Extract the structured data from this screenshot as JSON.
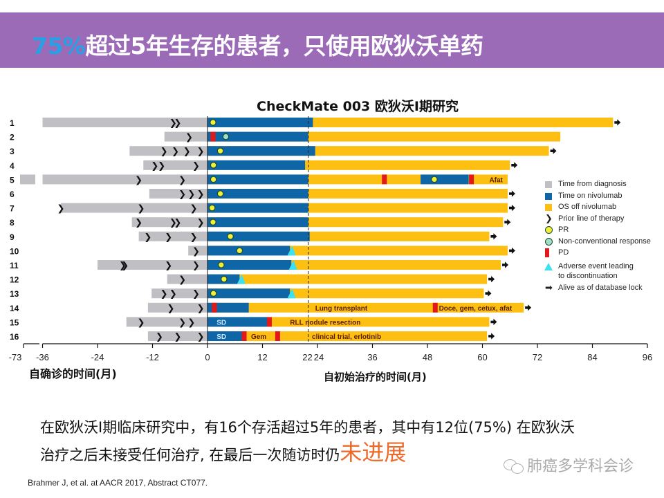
{
  "header": {
    "title_highlight": "75%",
    "title_rest": "超过5年生存的患者，只使用欧狄沃单药"
  },
  "colors": {
    "banner": "#9b6bb7",
    "highlight": "#2a9fe3",
    "time_from_diagnosis": "#c0bfc3",
    "time_on_nivolumab": "#0e66a6",
    "os_off_nivolumab": "#fcbf12",
    "pr": "#f2ef3c",
    "non_conventional": "#9fe0c8",
    "pd": "#e3181a",
    "adverse_event": "#3ee0f0",
    "emphasis": "#ec6a2a"
  },
  "chart_data": {
    "type": "swimmer",
    "title": "CheckMate 003 欧狄沃I期研究",
    "xlabel_left": "自确诊的时间(月)",
    "xlabel_right": "自初始治疗的时间(月)",
    "x_ticks": [
      "-73",
      "-36",
      "-24",
      "-12",
      "0",
      "12",
      "22",
      "24",
      "36",
      "48",
      "60",
      "72",
      "84",
      "96"
    ],
    "xlim": [
      -36,
      96
    ],
    "axis_break": {
      "label": "-73",
      "value": -73
    },
    "reference_line": 22,
    "legend": [
      {
        "key": "time_from_diagnosis",
        "label": "Time from diagnosis",
        "icon": "square"
      },
      {
        "key": "time_on_nivolumab",
        "label": "Time on nivolumab",
        "icon": "square"
      },
      {
        "key": "os_off_nivolumab",
        "label": "OS off nivolumab",
        "icon": "square"
      },
      {
        "key": "prior_line",
        "label": "Prior line of therapy",
        "icon": "chevron"
      },
      {
        "key": "pr",
        "label": "PR",
        "icon": "circle"
      },
      {
        "key": "non_conventional",
        "label": "Non-conventional response",
        "icon": "circle"
      },
      {
        "key": "pd",
        "label": "PD",
        "icon": "bar"
      },
      {
        "key": "adverse_event",
        "label": "Adverse event leading to discontinuation",
        "icon": "triangle"
      },
      {
        "key": "alive",
        "label": "Alive as of database lock",
        "icon": "arrow"
      }
    ],
    "patients": [
      {
        "id": "1",
        "diag_start": -36,
        "diag_break": false,
        "prior_lines": [
          -7.5,
          -6.5
        ],
        "nivo": [
          [
            0,
            23
          ]
        ],
        "os_end": 88.5,
        "alive": true,
        "pr": [
          1.2
        ],
        "ncr": [],
        "pd": [],
        "ae": [],
        "labels": []
      },
      {
        "id": "2",
        "diag_start": -9.4,
        "prior_lines": [
          -4
        ],
        "nivo": [
          [
            0,
            22
          ]
        ],
        "os_end": 77,
        "alive": false,
        "pr": [],
        "ncr": [
          4
        ],
        "pd": [
          1.2
        ],
        "ae": [],
        "labels": []
      },
      {
        "id": "3",
        "diag_start": -17,
        "prior_lines": [
          -9.5,
          -7,
          -4.5,
          -1.5
        ],
        "nivo": [
          [
            0,
            23.5
          ]
        ],
        "os_end": 74.5,
        "alive": true,
        "pr": [
          2.8
        ],
        "ncr": [],
        "pd": [],
        "ae": [],
        "labels": []
      },
      {
        "id": "4",
        "diag_start": -14,
        "prior_lines": [
          -11.5,
          -10,
          -2.5
        ],
        "nivo": [
          [
            0,
            21.3
          ]
        ],
        "os_end": 66,
        "alive": true,
        "pr": [
          1.3
        ],
        "ncr": [],
        "pd": [],
        "ae": [],
        "labels": []
      },
      {
        "id": "5",
        "diag_start": -36,
        "diag_break": true,
        "prior_lines": [
          -15,
          -5.5
        ],
        "nivo": [
          [
            0,
            22
          ],
          [
            46.5,
            57
          ]
        ],
        "os_end": 65.5,
        "alive": false,
        "pr": [
          1.3,
          49.5
        ],
        "ncr": [],
        "pd": [
          38.6,
          57.6
        ],
        "ae": [],
        "labels": [
          {
            "text": "Afat",
            "at": 61.5
          }
        ]
      },
      {
        "id": "6",
        "diag_start": -12.7,
        "prior_lines": [
          -5.5,
          -3.5,
          -1.5
        ],
        "nivo": [
          [
            0,
            22
          ]
        ],
        "os_end": 65.5,
        "alive": true,
        "pr": [
          2.8
        ],
        "ncr": [],
        "pd": [],
        "ae": [],
        "labels": []
      },
      {
        "id": "7",
        "diag_start": -32,
        "prior_lines": [
          -32,
          -14.5,
          -3
        ],
        "nivo": [
          [
            0,
            22
          ]
        ],
        "os_end": 65.5,
        "alive": true,
        "pr": [
          1
        ],
        "ncr": [],
        "pd": [],
        "ae": [],
        "labels": []
      },
      {
        "id": "8",
        "diag_start": -16.5,
        "prior_lines": [
          -15,
          -7.5,
          -6.5,
          -1.5
        ],
        "nivo": [
          [
            0,
            22
          ]
        ],
        "os_end": 64.5,
        "alive": true,
        "pr": [
          1.2
        ],
        "ncr": [],
        "pd": [],
        "ae": [],
        "labels": []
      },
      {
        "id": "9",
        "diag_start": -15,
        "prior_lines": [
          -13,
          -8.5,
          -3
        ],
        "nivo": [
          [
            0,
            22.3
          ]
        ],
        "os_end": 61.5,
        "alive": true,
        "pr": [
          5
        ],
        "ncr": [],
        "pd": [],
        "ae": [],
        "labels": []
      },
      {
        "id": "10",
        "diag_start": -4.2,
        "prior_lines": [
          -2.5
        ],
        "nivo": [
          [
            0,
            18
          ]
        ],
        "os_end": 65.5,
        "alive": true,
        "pr": [
          7
        ],
        "ncr": [],
        "pd": [],
        "ae": [
          18.5
        ],
        "labels": []
      },
      {
        "id": "11",
        "diag_start": -24,
        "prior_lines": [
          -18.5,
          -18,
          -8.5,
          -2.5
        ],
        "nivo": [
          [
            0,
            18.3
          ]
        ],
        "os_end": 64,
        "alive": true,
        "pr": [
          3
        ],
        "ncr": [],
        "pd": [],
        "ae": [
          18.8
        ],
        "labels": []
      },
      {
        "id": "12",
        "diag_start": -8.8,
        "prior_lines": [
          -5.5
        ],
        "nivo": [
          [
            0,
            7
          ]
        ],
        "os_end": 61,
        "alive": true,
        "pr": [
          3.6
        ],
        "ncr": [],
        "pd": [],
        "ae": [
          7.5
        ],
        "labels": []
      },
      {
        "id": "13",
        "diag_start": -12.2,
        "prior_lines": [
          -9.5,
          -7.5,
          -2.5
        ],
        "nivo": [
          [
            0,
            18
          ]
        ],
        "os_end": 60.3,
        "alive": true,
        "pr": [
          1.3
        ],
        "ncr": [],
        "pd": [],
        "ae": [
          18.5
        ],
        "labels": []
      },
      {
        "id": "14",
        "diag_start": -13,
        "prior_lines": [
          -8,
          -1.5
        ],
        "nivo": [
          [
            0,
            9
          ]
        ],
        "os_end": 69,
        "alive": true,
        "pr": [],
        "ncr": [],
        "pd": [
          1.5,
          49.7
        ],
        "ae": [],
        "labels": [
          {
            "text": "Lung transplant",
            "at": 23.5
          },
          {
            "text": "Doce, gem, cetux, afat",
            "at": 50.5
          }
        ]
      },
      {
        "id": "15",
        "diag_start": -17.7,
        "prior_lines": [
          -14.5,
          -5.5,
          -3.5
        ],
        "nivo": [
          [
            0,
            13
          ]
        ],
        "os_end": 61.5,
        "alive": true,
        "pr": [],
        "ncr": [],
        "pd": [
          13.5
        ],
        "ae": [],
        "labels": [
          {
            "text": "SD",
            "at": 2,
            "inverse": true
          },
          {
            "text": "RLL nodule resection",
            "at": 18
          }
        ]
      },
      {
        "id": "16",
        "diag_start": -13,
        "prior_lines": [
          -10.5,
          -6.5,
          -1.5
        ],
        "nivo": [
          [
            0,
            7.5
          ]
        ],
        "os_end": 61,
        "alive": true,
        "pr": [],
        "ncr": [],
        "pd": [
          8,
          15.3
        ],
        "ae": [],
        "labels": [
          {
            "text": "SD",
            "at": 2,
            "inverse": true
          },
          {
            "text": "Gem",
            "at": 9.5
          },
          {
            "text": "clinical  trial, erlotinib",
            "at": 22.8
          }
        ]
      }
    ]
  },
  "footer": {
    "caption_line1": "在欧狄沃I期临床研究中，有16个存活超过5年的患者，其中有12位(75%) 在欧狄沃",
    "caption_line2": "治疗之后未接受任何治疗, 在最后一次随访时仍",
    "caption_emphasis": "未进展",
    "citation": "Brahmer J, et al. at AACR 2017, Abstract CT077.",
    "watermark": "肺癌多学科会诊"
  }
}
